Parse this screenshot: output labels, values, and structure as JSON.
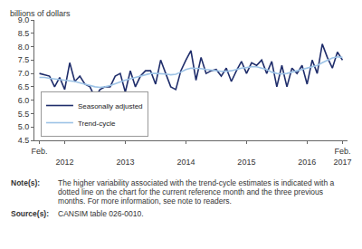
{
  "chart_data": {
    "type": "line",
    "y_label": "billions of dollars",
    "categories": [
      "Feb.",
      null,
      null,
      null,
      null,
      "2012",
      null,
      null,
      null,
      null,
      null,
      null,
      null,
      null,
      null,
      null,
      null,
      "2013",
      null,
      null,
      null,
      null,
      null,
      null,
      null,
      null,
      null,
      null,
      null,
      "2014",
      null,
      null,
      null,
      null,
      null,
      null,
      null,
      null,
      null,
      null,
      null,
      "2015",
      null,
      null,
      null,
      null,
      null,
      null,
      null,
      null,
      null,
      null,
      null,
      "2016",
      null,
      null,
      null,
      null,
      null,
      null,
      "Feb. 2017"
    ],
    "series": [
      {
        "name": "Seasonally adjusted",
        "color": "#1f2d6b",
        "line_style": "solid",
        "values": [
          7.0,
          6.95,
          6.9,
          6.5,
          6.85,
          6.4,
          7.4,
          6.7,
          6.9,
          6.6,
          6.5,
          6.1,
          6.4,
          6.5,
          6.5,
          6.9,
          7.0,
          6.3,
          7.1,
          6.5,
          6.9,
          7.1,
          7.1,
          6.6,
          7.5,
          7.0,
          6.5,
          6.4,
          7.1,
          7.5,
          7.85,
          6.75,
          7.6,
          7.0,
          7.1,
          7.15,
          6.9,
          7.2,
          6.7,
          7.1,
          7.45,
          7.0,
          7.4,
          7.3,
          7.5,
          7.0,
          7.45,
          6.5,
          7.3,
          6.5,
          7.2,
          7.0,
          7.3,
          6.6,
          7.5,
          7.0,
          8.1,
          7.6,
          7.2,
          7.8,
          7.5
        ]
      },
      {
        "name": "Trend-cycle",
        "color": "#9dc3e6",
        "line_style": "solid",
        "values": [
          6.85,
          6.85,
          6.82,
          6.8,
          6.78,
          6.75,
          6.72,
          6.7,
          6.65,
          6.6,
          6.55,
          6.5,
          6.48,
          6.5,
          6.55,
          6.62,
          6.7,
          6.75,
          6.8,
          6.85,
          6.9,
          6.95,
          7.0,
          7.0,
          7.0,
          6.98,
          6.95,
          6.97,
          7.05,
          7.15,
          7.2,
          7.2,
          7.18,
          7.15,
          7.12,
          7.1,
          7.08,
          7.08,
          7.1,
          7.15,
          7.2,
          7.22,
          7.25,
          7.25,
          7.2,
          7.15,
          7.05,
          7.0,
          6.98,
          7.0,
          7.05,
          7.1,
          7.15,
          7.2,
          7.25,
          7.3,
          7.4,
          7.5,
          7.58,
          7.62,
          7.6
        ]
      }
    ],
    "ylim": [
      4.5,
      9.0
    ],
    "yticks": [
      {
        "value": 4.5,
        "label": "4.5"
      },
      {
        "value": 5,
        "label": "5.0"
      },
      {
        "value": 5.5,
        "label": "5.5"
      },
      {
        "value": 6,
        "label": "6.0"
      },
      {
        "value": 6.5,
        "label": "6.5"
      },
      {
        "value": 7,
        "label": "7.0"
      },
      {
        "value": 7.5,
        "label": "7.5"
      },
      {
        "value": 8,
        "label": "8.0"
      },
      {
        "value": 8.5,
        "label": "8.5"
      },
      {
        "value": 9,
        "label": "9.0"
      }
    ],
    "grid": false,
    "legend": "lower left"
  },
  "notes": [
    {
      "label": "Note(s):",
      "text": "The higher variability associated with the trend-cycle estimates is indicated with a dotted line on the chart for the current reference month and the three previous months. For more information, see note to readers."
    },
    {
      "label": "Source(s):",
      "text": "CANSIM table 026-0010."
    }
  ]
}
